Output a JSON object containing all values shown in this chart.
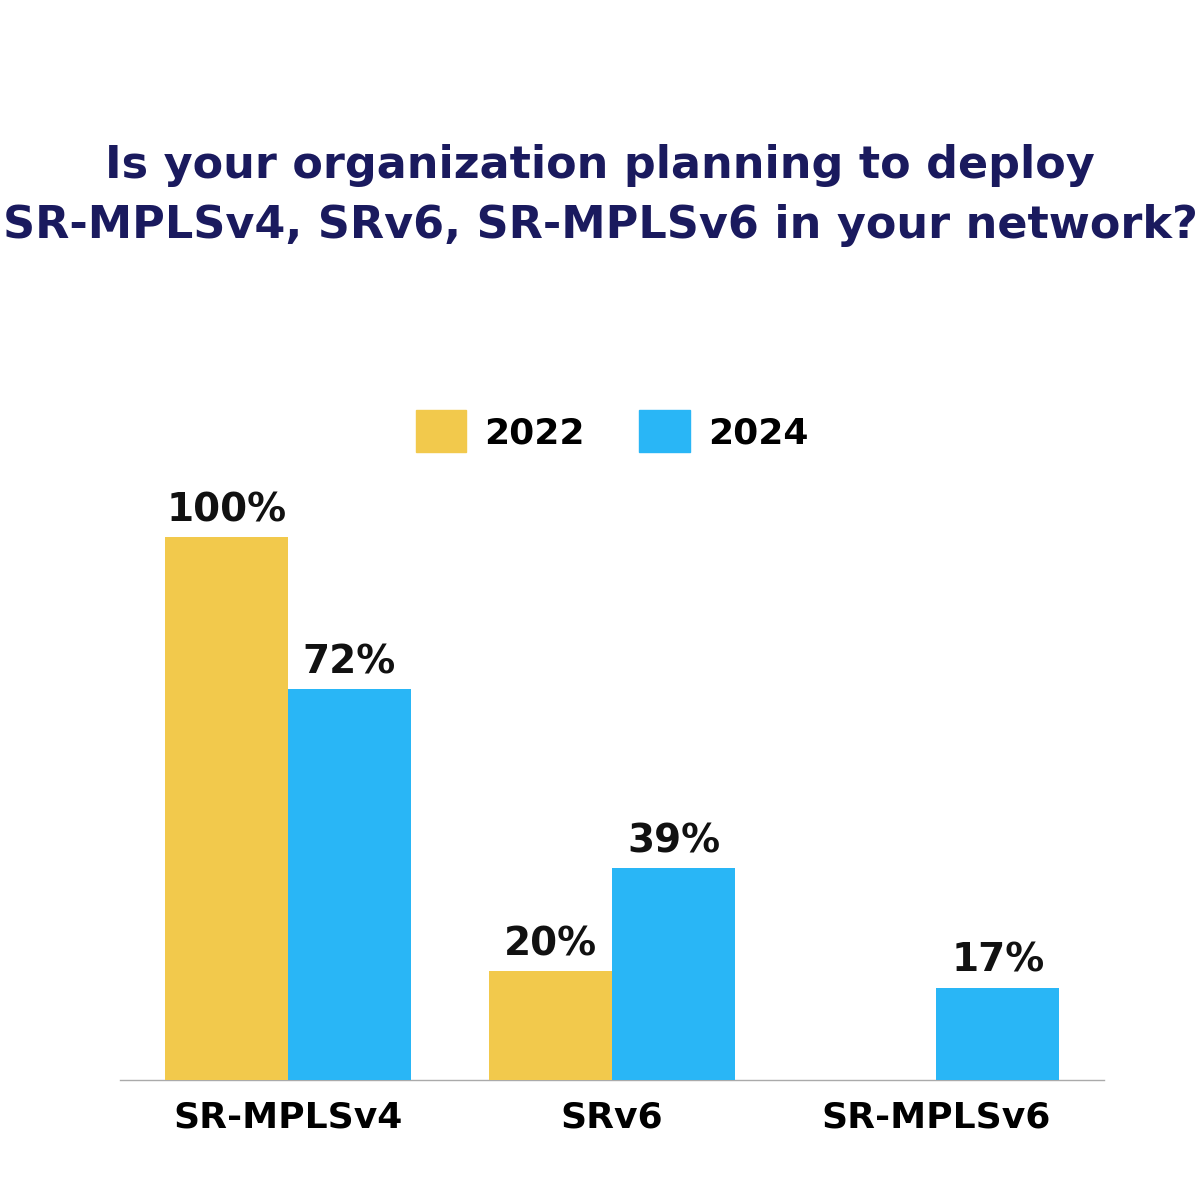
{
  "title": "Is your organization planning to deploy\nSR-MPLSv4, SRv6, SR-MPLSv6 in your network?",
  "categories": [
    "SR-MPLSv4",
    "SRv6",
    "SR-MPLSv6"
  ],
  "values_2022": [
    100,
    20,
    0
  ],
  "values_2024": [
    72,
    39,
    17
  ],
  "color_2022": "#F2C94C",
  "color_2024": "#29B6F6",
  "label_2022": "2022",
  "label_2024": "2024",
  "background_color": "#FFFFFF",
  "title_color": "#1A1A5E",
  "label_color": "#111111",
  "title_fontsize": 32,
  "label_fontsize": 28,
  "tick_fontsize": 26,
  "legend_fontsize": 26,
  "bar_width": 0.38,
  "ylim": [
    0,
    115
  ]
}
